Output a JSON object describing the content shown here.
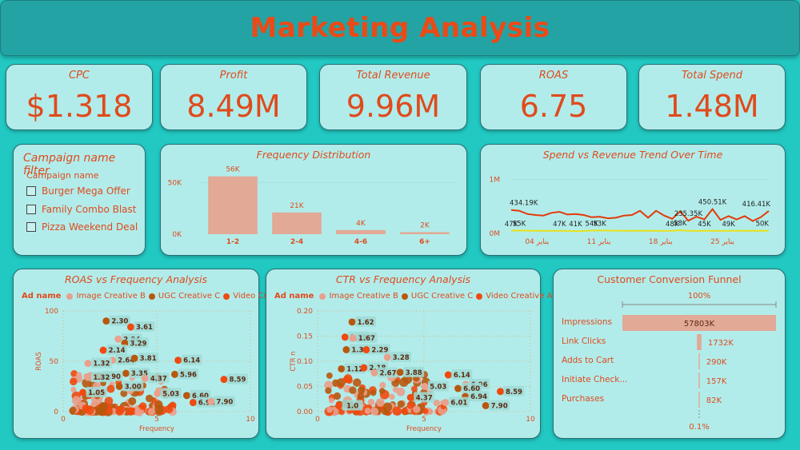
{
  "page_title": "Marketing Analysis",
  "kpis": [
    {
      "label": "CPC",
      "value": "$1.318"
    },
    {
      "label": "Profit",
      "value": "8.49M"
    },
    {
      "label": "Total Revenue",
      "value": "9.96M"
    },
    {
      "label": "ROAS",
      "value": "6.75"
    },
    {
      "label": "Total Spend",
      "value": "1.48M"
    }
  ],
  "filter": {
    "title": "Campaign name filter",
    "subtitle": "Campaign name",
    "options": [
      "Burger Mega Offer",
      "Family Combo Blast",
      "Pizza Weekend Deal"
    ]
  },
  "colors": {
    "accent": "#e04a1c",
    "bar": "#e1a996",
    "image_creative_b": "#e9a08c",
    "ugc_creative_c": "#b8580e",
    "video_creative_a": "#f04a10",
    "line_revenue": "#e43a0a",
    "line_spend": "#e8e21a"
  },
  "frequency_distribution": {
    "title": "Frequency Distribution",
    "chart_data": {
      "type": "bar",
      "categories": [
        "1-2",
        "2-4",
        "4-6",
        "6+"
      ],
      "values": [
        56000,
        21000,
        4000,
        2000
      ],
      "data_labels": [
        "56K",
        "21K",
        "4K",
        "2K"
      ],
      "y_ticks": [
        "0K",
        "50K"
      ],
      "ylim": [
        0,
        65000
      ]
    }
  },
  "trend": {
    "title": "Spend vs Revenue Trend Over Time",
    "chart_data": {
      "type": "line",
      "x_ticks": [
        "04 يناير",
        "11 يناير",
        "18 يناير",
        "25 يناير"
      ],
      "y_ticks": [
        "0M",
        "1M"
      ],
      "series": [
        {
          "values": [
            434190,
            420000,
            360000,
            340000,
            330000,
            380000,
            400000,
            350000,
            360000,
            340000,
            300000,
            310000,
            280000,
            290000,
            330000,
            340000,
            420000,
            290000,
            420000,
            330000,
            270000,
            410000,
            235350,
            310000,
            260000,
            450510,
            250000,
            320000,
            260000,
            320000,
            230000,
            300000,
            416410
          ]
        },
        {
          "values": [
            47000,
            55000,
            50000,
            48000,
            47000,
            46000,
            47000,
            46000,
            41000,
            45000,
            54000,
            53000,
            52000,
            50000,
            49000,
            48000,
            50000,
            47000,
            48000,
            46000,
            48000,
            58000,
            50000,
            45000,
            47000,
            49000,
            46000,
            48000,
            50000,
            47000,
            49000,
            48000,
            50000
          ]
        }
      ],
      "data_labels": [
        "434.19K",
        "450.51K",
        "235.35K",
        "416.41K",
        "47K",
        "55K",
        "47K",
        "41K",
        "54K",
        "53K",
        "48K",
        "58K",
        "45K",
        "49K",
        "50K"
      ],
      "ylim": [
        0,
        1200000
      ]
    }
  },
  "roas_scatter": {
    "title": "ROAS vs Frequency Analysis",
    "legend_title": "Ad name",
    "legend": [
      "Image Creative B",
      "UGC Creative C",
      "Video Creative A"
    ],
    "chart_data": {
      "type": "scatter",
      "xlabel": "Frequency",
      "ylabel": "ROAS",
      "xlim": [
        0,
        10
      ],
      "ylim": [
        0,
        100
      ],
      "x_ticks": [
        "0",
        "5",
        "10"
      ],
      "y_ticks": [
        "0",
        "50",
        "100"
      ],
      "labeled_points": [
        {
          "x": 2.3,
          "y": 90,
          "label": "2.30"
        },
        {
          "x": 3.61,
          "y": 84,
          "label": "3.61"
        },
        {
          "x": 2.94,
          "y": 72,
          "label": "2.94"
        },
        {
          "x": 3.29,
          "y": 68,
          "label": "3.29"
        },
        {
          "x": 2.14,
          "y": 61,
          "label": "2.14"
        },
        {
          "x": 2.64,
          "y": 51,
          "label": "2.64"
        },
        {
          "x": 3.81,
          "y": 53,
          "label": "3.81"
        },
        {
          "x": 6.14,
          "y": 51,
          "label": "6.14"
        },
        {
          "x": 1.32,
          "y": 48,
          "label": "1.32"
        },
        {
          "x": 3.35,
          "y": 38,
          "label": "3.35"
        },
        {
          "x": 1.9,
          "y": 35,
          "label": "1.90"
        },
        {
          "x": 1.32,
          "y": 34,
          "label": "1.32"
        },
        {
          "x": 5.96,
          "y": 37,
          "label": "5.96"
        },
        {
          "x": 8.59,
          "y": 32,
          "label": "8.59"
        },
        {
          "x": 4.37,
          "y": 33,
          "label": "4.37"
        },
        {
          "x": 3.0,
          "y": 25,
          "label": "3.00"
        },
        {
          "x": 1.05,
          "y": 19,
          "label": "1.05"
        },
        {
          "x": 5.03,
          "y": 18,
          "label": "5.03"
        },
        {
          "x": 6.6,
          "y": 16,
          "label": "6.60"
        },
        {
          "x": 6.94,
          "y": 9,
          "label": "6.94"
        },
        {
          "x": 7.9,
          "y": 10,
          "label": "7.90"
        }
      ]
    }
  },
  "ctr_scatter": {
    "title": "CTR vs Frequency Analysis",
    "legend_title": "Ad name",
    "legend": [
      "Image Creative B",
      "UGC Creative C",
      "Video Creative A"
    ],
    "chart_data": {
      "type": "scatter",
      "xlabel": "Frequency",
      "ylabel": "CTR n",
      "xlim": [
        0,
        10
      ],
      "ylim": [
        0,
        0.2
      ],
      "x_ticks": [
        "0",
        "5",
        "10"
      ],
      "y_ticks": [
        "0.00",
        "0.05",
        "0.10",
        "0.15",
        "0.20"
      ],
      "labeled_points": [
        {
          "x": 1.62,
          "y": 0.178,
          "label": "1.62"
        },
        {
          "x": 1.29,
          "y": 0.148,
          "label": "1.29"
        },
        {
          "x": 1.67,
          "y": 0.146,
          "label": "1.67"
        },
        {
          "x": 1.35,
          "y": 0.123,
          "label": "1.35"
        },
        {
          "x": 2.29,
          "y": 0.123,
          "label": "2.29"
        },
        {
          "x": 3.28,
          "y": 0.108,
          "label": "3.28"
        },
        {
          "x": 1.12,
          "y": 0.085,
          "label": "1.12"
        },
        {
          "x": 2.18,
          "y": 0.087,
          "label": "2.18"
        },
        {
          "x": 2.67,
          "y": 0.077,
          "label": "2.67"
        },
        {
          "x": 3.88,
          "y": 0.078,
          "label": "3.88"
        },
        {
          "x": 6.14,
          "y": 0.073,
          "label": "6.14"
        },
        {
          "x": 6.96,
          "y": 0.054,
          "label": "6.96"
        },
        {
          "x": 6.6,
          "y": 0.046,
          "label": "6.60"
        },
        {
          "x": 8.59,
          "y": 0.04,
          "label": "8.59"
        },
        {
          "x": 5.03,
          "y": 0.05,
          "label": "5.03"
        },
        {
          "x": 6.94,
          "y": 0.03,
          "label": "6.94"
        },
        {
          "x": 4.37,
          "y": 0.028,
          "label": "4.37"
        },
        {
          "x": 6.01,
          "y": 0.018,
          "label": "6.01"
        },
        {
          "x": 7.9,
          "y": 0.012,
          "label": "7.90"
        },
        {
          "x": 1.0,
          "y": 0.012,
          "label": "1.0"
        }
      ]
    }
  },
  "funnel": {
    "title": "Customer Conversion Funnel",
    "top_pct": "100%",
    "bottom_pct": "0.1%",
    "stages": [
      {
        "label": "Impressions",
        "value": "57803K",
        "amount": 57803
      },
      {
        "label": "Link Clicks",
        "value": "1732K",
        "amount": 1732
      },
      {
        "label": "Adds to Cart",
        "value": "290K",
        "amount": 290
      },
      {
        "label": "Initiate Check...",
        "value": "157K",
        "amount": 157
      },
      {
        "label": "Purchases",
        "value": "82K",
        "amount": 82
      }
    ]
  }
}
